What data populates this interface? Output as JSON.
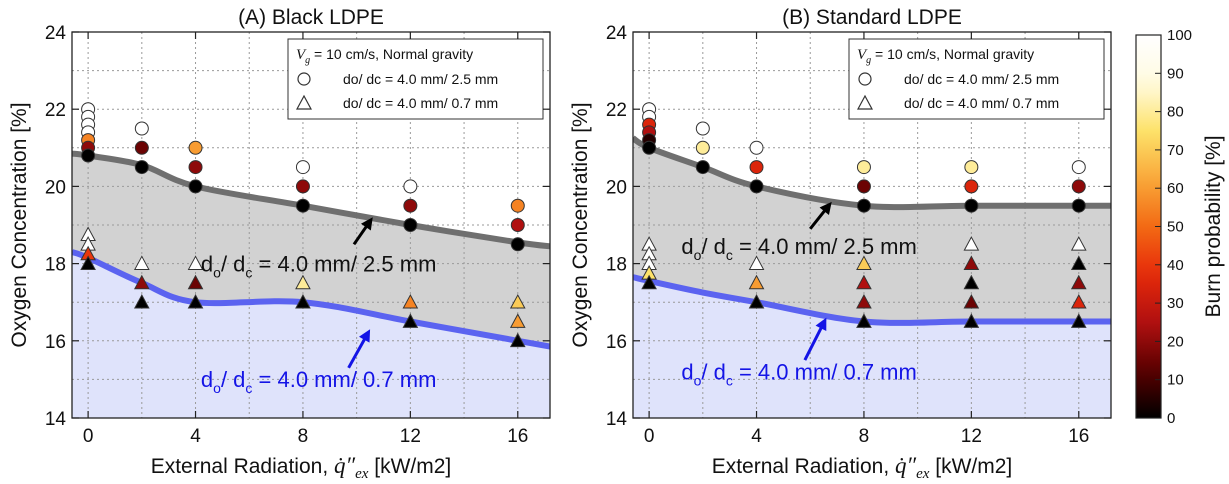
{
  "figure": {
    "colorbar": {
      "label": "Burn probability [%]",
      "min": 0,
      "max": 100,
      "ticks": [
        0,
        10,
        20,
        30,
        40,
        50,
        60,
        70,
        80,
        90,
        100
      ],
      "tick_labels": [
        "0",
        "10",
        "20",
        "30",
        "40",
        "50",
        "60",
        "70",
        "80",
        "90",
        "100"
      ],
      "colormap": [
        "#000000",
        "#5a0000",
        "#b01010",
        "#e62a0a",
        "#f36a14",
        "#f9a83a",
        "#fde26a",
        "#fffbe0",
        "#ffffff"
      ]
    },
    "colors": {
      "grey_line": "#6f6f6f",
      "blue_line": "#5b63f0",
      "grey_fill": "#d2d2d2",
      "blue_fill": "#dfe3fb",
      "label_blue": "#1414e6"
    }
  },
  "chart_data": [
    {
      "type": "scatter",
      "title": "(A) Black LDPE",
      "xlabel": "External Radiation,",
      "xlabel_symbol": "q̇″",
      "xlabel_symbol_sub": "ex",
      "xlabel_unit": "[kW/m2]",
      "ylabel": "Oxygen Concentration [%]",
      "xlim": [
        -0.6,
        17.2
      ],
      "ylim": [
        14,
        24
      ],
      "x_ticks": [
        0,
        4,
        8,
        12,
        16
      ],
      "x_tick_labels": [
        "0",
        "4",
        "8",
        "12",
        "16"
      ],
      "y_ticks": [
        14,
        16,
        18,
        20,
        22,
        24
      ],
      "y_tick_labels": [
        "14",
        "16",
        "18",
        "20",
        "22",
        "24"
      ],
      "grid": true,
      "legend": {
        "position": "top-right",
        "header_symbol": "V",
        "header_symbol_sub": "g",
        "header_text": " = 10 cm/s, Normal gravity",
        "entries": [
          {
            "marker": "circle",
            "label": "do/ dc = 4.0 mm/ 2.5 mm"
          },
          {
            "marker": "triangle",
            "label": "do/ dc = 4.0 mm/ 0.7 mm"
          }
        ]
      },
      "annotations": [
        {
          "text_main": "d",
          "sub1": "o",
          "mid": "/ d",
          "sub2": "c",
          "rest": " = 4.0 mm/ 2.5 mm",
          "color": "#111111",
          "x": 4.2,
          "y": 17.8
        },
        {
          "text_main": "d",
          "sub1": "o",
          "mid": "/ d",
          "sub2": "c",
          "rest": " = 4.0 mm/ 0.7 mm",
          "color": "#1414e6",
          "x": 4.2,
          "y": 14.8
        }
      ],
      "arrows": [
        {
          "from": [
            9.9,
            18.5
          ],
          "to": [
            10.6,
            19.2
          ],
          "color": "#000000"
        },
        {
          "from": [
            9.7,
            15.3
          ],
          "to": [
            10.5,
            16.3
          ],
          "color": "#1414e6"
        }
      ],
      "boundaries": [
        {
          "name": "do/ dc = 4.0 mm/ 2.5 mm",
          "color": "#6f6f6f",
          "x": [
            -0.6,
            0,
            2,
            4,
            8,
            12,
            16,
            17.2
          ],
          "y": [
            20.85,
            20.8,
            20.55,
            20.0,
            19.5,
            19.0,
            18.55,
            18.45
          ]
        },
        {
          "name": "do/ dc = 4.0 mm/ 0.7 mm",
          "color": "#5b63f0",
          "x": [
            -0.6,
            0,
            2,
            4,
            8,
            12,
            16,
            17.2
          ],
          "y": [
            18.3,
            18.15,
            17.5,
            17.0,
            17.0,
            16.5,
            16.0,
            15.85
          ]
        }
      ],
      "series": [
        {
          "name": "do/ dc = 4.0 mm/ 2.5 mm",
          "marker": "circle",
          "points": [
            {
              "x": 0,
              "y": 22.0,
              "p": 100
            },
            {
              "x": 0,
              "y": 21.8,
              "p": 100
            },
            {
              "x": 0,
              "y": 21.6,
              "p": 100
            },
            {
              "x": 0,
              "y": 21.4,
              "p": 100
            },
            {
              "x": 0,
              "y": 21.2,
              "p": 55
            },
            {
              "x": 0,
              "y": 21.0,
              "p": 20
            },
            {
              "x": 0,
              "y": 20.8,
              "p": 0
            },
            {
              "x": 2,
              "y": 21.5,
              "p": 100
            },
            {
              "x": 2,
              "y": 21.0,
              "p": 15
            },
            {
              "x": 2,
              "y": 20.5,
              "p": 0
            },
            {
              "x": 4,
              "y": 21.0,
              "p": 60
            },
            {
              "x": 4,
              "y": 20.5,
              "p": 20
            },
            {
              "x": 4,
              "y": 20.0,
              "p": 0
            },
            {
              "x": 8,
              "y": 20.5,
              "p": 100
            },
            {
              "x": 8,
              "y": 20.0,
              "p": 20
            },
            {
              "x": 8,
              "y": 19.5,
              "p": 0
            },
            {
              "x": 12,
              "y": 20.0,
              "p": 100
            },
            {
              "x": 12,
              "y": 19.5,
              "p": 20
            },
            {
              "x": 12,
              "y": 19.0,
              "p": 0
            },
            {
              "x": 16,
              "y": 19.5,
              "p": 55
            },
            {
              "x": 16,
              "y": 19.0,
              "p": 25
            },
            {
              "x": 16,
              "y": 18.5,
              "p": 0
            }
          ]
        },
        {
          "name": "do/ dc = 4.0 mm/ 0.7 mm",
          "marker": "triangle",
          "points": [
            {
              "x": 0,
              "y": 18.75,
              "p": 100
            },
            {
              "x": 0,
              "y": 18.5,
              "p": 100
            },
            {
              "x": 0,
              "y": 18.25,
              "p": 40
            },
            {
              "x": 0,
              "y": 18.0,
              "p": 0
            },
            {
              "x": 2,
              "y": 18.0,
              "p": 100
            },
            {
              "x": 2,
              "y": 17.5,
              "p": 20
            },
            {
              "x": 2,
              "y": 17.0,
              "p": 0
            },
            {
              "x": 4,
              "y": 18.0,
              "p": 100
            },
            {
              "x": 4,
              "y": 17.5,
              "p": 15
            },
            {
              "x": 4,
              "y": 17.0,
              "p": 0
            },
            {
              "x": 8,
              "y": 17.5,
              "p": 80
            },
            {
              "x": 8,
              "y": 17.0,
              "p": 0
            },
            {
              "x": 12,
              "y": 17.0,
              "p": 55
            },
            {
              "x": 12,
              "y": 16.5,
              "p": 0
            },
            {
              "x": 16,
              "y": 17.0,
              "p": 70
            },
            {
              "x": 16,
              "y": 16.5,
              "p": 60
            },
            {
              "x": 16,
              "y": 16.0,
              "p": 0
            }
          ]
        }
      ]
    },
    {
      "type": "scatter",
      "title": "(B) Standard LDPE",
      "xlabel": "External Radiation,",
      "xlabel_symbol": "q̇″",
      "xlabel_symbol_sub": "ex",
      "xlabel_unit": "[kW/m2]",
      "ylabel": "Oxygen Concentration [%]",
      "xlim": [
        -0.6,
        17.2
      ],
      "ylim": [
        14,
        24
      ],
      "x_ticks": [
        0,
        4,
        8,
        12,
        16
      ],
      "x_tick_labels": [
        "0",
        "4",
        "8",
        "12",
        "16"
      ],
      "y_ticks": [
        14,
        16,
        18,
        20,
        22,
        24
      ],
      "y_tick_labels": [
        "14",
        "16",
        "18",
        "20",
        "22",
        "24"
      ],
      "grid": true,
      "legend": {
        "position": "top-right",
        "header_symbol": "V",
        "header_symbol_sub": "g",
        "header_text": " = 10 cm/s, Normal gravity",
        "entries": [
          {
            "marker": "circle",
            "label": "do/ dc = 4.0 mm/ 2.5 mm"
          },
          {
            "marker": "triangle",
            "label": "do/ dc = 4.0 mm/ 0.7 mm"
          }
        ]
      },
      "annotations": [
        {
          "text_main": "d",
          "sub1": "o",
          "mid": "/ d",
          "sub2": "c",
          "rest": " = 4.0 mm/ 2.5 mm",
          "color": "#111111",
          "x": 1.2,
          "y": 18.25
        },
        {
          "text_main": "d",
          "sub1": "o",
          "mid": "/ d",
          "sub2": "c",
          "rest": " = 4.0 mm/ 0.7 mm",
          "color": "#1414e6",
          "x": 1.2,
          "y": 15.0
        }
      ],
      "arrows": [
        {
          "from": [
            6.0,
            18.9
          ],
          "to": [
            6.8,
            19.6
          ],
          "color": "#000000"
        },
        {
          "from": [
            5.8,
            15.5
          ],
          "to": [
            6.6,
            16.6
          ],
          "color": "#1414e6"
        }
      ],
      "boundaries": [
        {
          "name": "do/ dc = 4.0 mm/ 2.5 mm",
          "color": "#6f6f6f",
          "x": [
            -0.6,
            0,
            2,
            4,
            8,
            12,
            16,
            17.2
          ],
          "y": [
            21.25,
            21.0,
            20.5,
            20.0,
            19.5,
            19.5,
            19.5,
            19.5
          ]
        },
        {
          "name": "do/ dc = 4.0 mm/ 0.7 mm",
          "color": "#5b63f0",
          "x": [
            -0.6,
            0,
            2,
            4,
            8,
            12,
            16,
            17.2
          ],
          "y": [
            17.65,
            17.55,
            17.25,
            17.0,
            16.5,
            16.5,
            16.5,
            16.5
          ]
        }
      ],
      "series": [
        {
          "name": "do/ dc = 4.0 mm/ 2.5 mm",
          "marker": "circle",
          "points": [
            {
              "x": 0,
              "y": 22.0,
              "p": 100
            },
            {
              "x": 0,
              "y": 21.8,
              "p": 100
            },
            {
              "x": 0,
              "y": 21.6,
              "p": 35
            },
            {
              "x": 0,
              "y": 21.4,
              "p": 25
            },
            {
              "x": 0,
              "y": 21.2,
              "p": 5
            },
            {
              "x": 0,
              "y": 21.0,
              "p": 0
            },
            {
              "x": 2,
              "y": 21.5,
              "p": 100
            },
            {
              "x": 2,
              "y": 21.0,
              "p": 80
            },
            {
              "x": 2,
              "y": 20.5,
              "p": 0
            },
            {
              "x": 4,
              "y": 21.0,
              "p": 100
            },
            {
              "x": 4,
              "y": 20.5,
              "p": 35
            },
            {
              "x": 4,
              "y": 20.0,
              "p": 0
            },
            {
              "x": 8,
              "y": 20.5,
              "p": 80
            },
            {
              "x": 8,
              "y": 20.0,
              "p": 15
            },
            {
              "x": 8,
              "y": 19.5,
              "p": 0
            },
            {
              "x": 12,
              "y": 20.5,
              "p": 80
            },
            {
              "x": 12,
              "y": 20.0,
              "p": 35
            },
            {
              "x": 12,
              "y": 19.5,
              "p": 0
            },
            {
              "x": 16,
              "y": 20.5,
              "p": 100
            },
            {
              "x": 16,
              "y": 20.0,
              "p": 20
            },
            {
              "x": 16,
              "y": 19.5,
              "p": 0
            }
          ]
        },
        {
          "name": "do/ dc = 4.0 mm/ 0.7 mm",
          "marker": "triangle",
          "points": [
            {
              "x": 0,
              "y": 18.5,
              "p": 100
            },
            {
              "x": 0,
              "y": 18.25,
              "p": 100
            },
            {
              "x": 0,
              "y": 18.0,
              "p": 100
            },
            {
              "x": 0,
              "y": 17.75,
              "p": 75
            },
            {
              "x": 0,
              "y": 17.5,
              "p": 0
            },
            {
              "x": 4,
              "y": 18.0,
              "p": 100
            },
            {
              "x": 4,
              "y": 17.5,
              "p": 60
            },
            {
              "x": 4,
              "y": 17.0,
              "p": 0
            },
            {
              "x": 8,
              "y": 18.0,
              "p": 70
            },
            {
              "x": 8,
              "y": 17.5,
              "p": 25
            },
            {
              "x": 8,
              "y": 17.0,
              "p": 20
            },
            {
              "x": 8,
              "y": 16.5,
              "p": 0
            },
            {
              "x": 12,
              "y": 18.5,
              "p": 100
            },
            {
              "x": 12,
              "y": 18.0,
              "p": 20
            },
            {
              "x": 12,
              "y": 17.5,
              "p": 0
            },
            {
              "x": 12,
              "y": 17.0,
              "p": 15
            },
            {
              "x": 12,
              "y": 16.5,
              "p": 0
            },
            {
              "x": 16,
              "y": 18.5,
              "p": 100
            },
            {
              "x": 16,
              "y": 18.0,
              "p": 0
            },
            {
              "x": 16,
              "y": 17.5,
              "p": 20
            },
            {
              "x": 16,
              "y": 17.0,
              "p": 35
            },
            {
              "x": 16,
              "y": 16.5,
              "p": 0
            }
          ]
        }
      ]
    }
  ]
}
